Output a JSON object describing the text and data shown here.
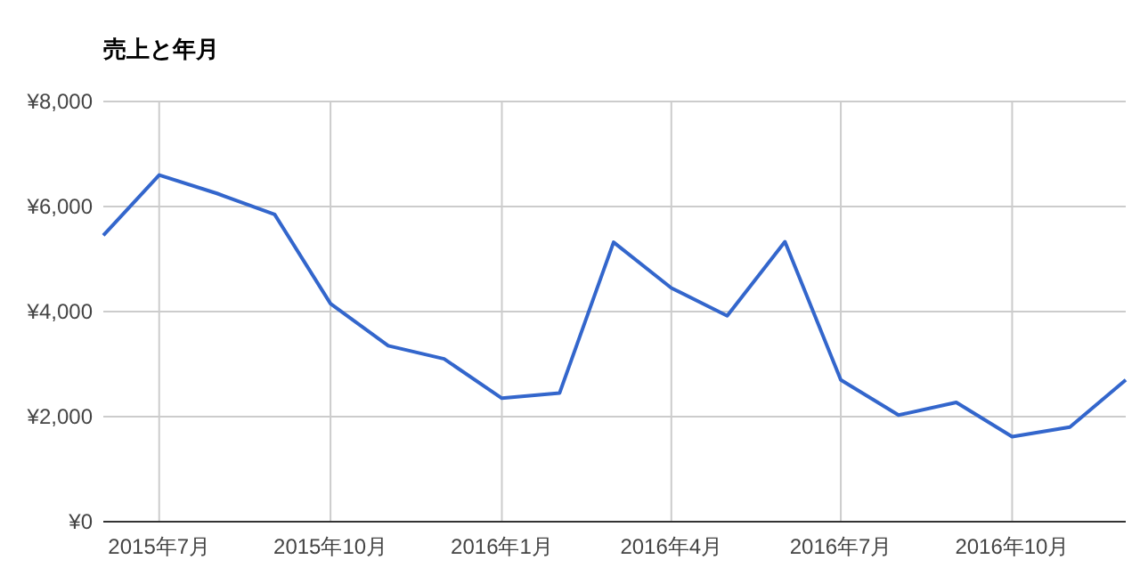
{
  "chart_data": {
    "type": "line",
    "title": "売上と年月",
    "x": [
      "2015-06",
      "2015-07",
      "2015-08",
      "2015-09",
      "2015-10",
      "2015-11",
      "2015-12",
      "2016-01",
      "2016-02",
      "2016-03",
      "2016-04",
      "2016-05",
      "2016-06",
      "2016-07",
      "2016-08",
      "2016-09",
      "2016-10",
      "2016-11",
      "2016-12"
    ],
    "series": [
      {
        "color": "#3366cc",
        "values": [
          5450,
          6600,
          6250,
          5850,
          4150,
          3350,
          3100,
          2350,
          2450,
          5320,
          4450,
          3920,
          5330,
          2700,
          2030,
          2270,
          1620,
          1800,
          2700
        ]
      }
    ],
    "xlim": [
      "2015-06",
      "2016-12"
    ],
    "xticks": [
      {
        "value": "2015-07",
        "label": "2015年7月"
      },
      {
        "value": "2015-10",
        "label": "2015年10月"
      },
      {
        "value": "2016-01",
        "label": "2016年1月"
      },
      {
        "value": "2016-04",
        "label": "2016年4月"
      },
      {
        "value": "2016-07",
        "label": "2016年7月"
      },
      {
        "value": "2016-10",
        "label": "2016年10月"
      }
    ],
    "ylim": [
      0,
      8000
    ],
    "yticks": [
      {
        "value": 0,
        "label": "¥0"
      },
      {
        "value": 2000,
        "label": "¥2,000"
      },
      {
        "value": 4000,
        "label": "¥4,000"
      },
      {
        "value": 6000,
        "label": "¥6,000"
      },
      {
        "value": 8000,
        "label": "¥8,000"
      }
    ],
    "grid": true,
    "marker": "none",
    "line_style": "solid"
  }
}
